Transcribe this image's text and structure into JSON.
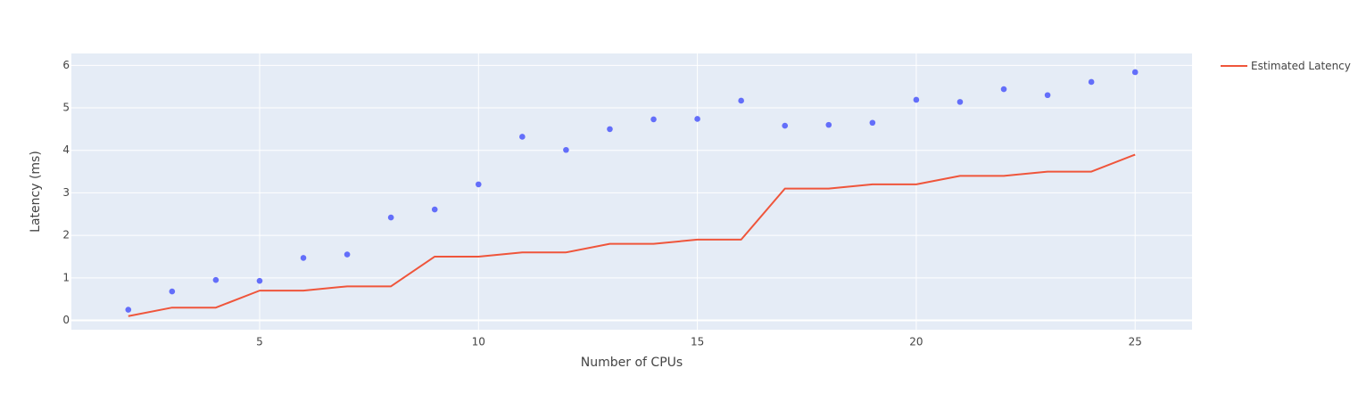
{
  "chart_data": {
    "type": "scatter",
    "xlabel": "Number of CPUs",
    "ylabel": "Latency (ms)",
    "xlim": [
      0.7,
      26.3
    ],
    "ylim": [
      -0.22,
      6.28
    ],
    "x_ticks": [
      5,
      10,
      15,
      20,
      25
    ],
    "y_ticks": [
      0,
      1,
      2,
      3,
      4,
      5,
      6
    ],
    "grid": true,
    "legend_position": "top-right",
    "colors": {
      "plot_bg": "#e5ecf6",
      "grid": "#ffffff",
      "markers": "#636efa",
      "line": "#ef553b"
    },
    "series": [
      {
        "mode": "markers",
        "x": [
          2,
          3,
          4,
          5,
          6,
          7,
          8,
          9,
          10,
          11,
          12,
          13,
          14,
          15,
          16,
          17,
          18,
          19,
          20,
          21,
          22,
          23,
          24,
          25
        ],
        "y": [
          0.25,
          0.68,
          0.95,
          0.93,
          1.47,
          1.55,
          2.42,
          2.61,
          3.2,
          4.32,
          4.01,
          4.5,
          4.73,
          4.74,
          5.17,
          4.58,
          4.6,
          4.65,
          5.19,
          5.14,
          5.44,
          5.3,
          5.61,
          5.84
        ]
      },
      {
        "name": "Estimated Latency",
        "mode": "lines",
        "x": [
          2,
          3,
          4,
          5,
          6,
          7,
          8,
          9,
          10,
          11,
          12,
          13,
          14,
          15,
          16,
          17,
          18,
          19,
          20,
          21,
          22,
          23,
          24,
          25
        ],
        "y": [
          0.1,
          0.3,
          0.3,
          0.7,
          0.7,
          0.8,
          0.8,
          1.5,
          1.5,
          1.6,
          1.6,
          1.8,
          1.8,
          1.9,
          1.9,
          3.1,
          3.1,
          3.2,
          3.2,
          3.4,
          3.4,
          3.5,
          3.5,
          3.9
        ]
      }
    ]
  }
}
